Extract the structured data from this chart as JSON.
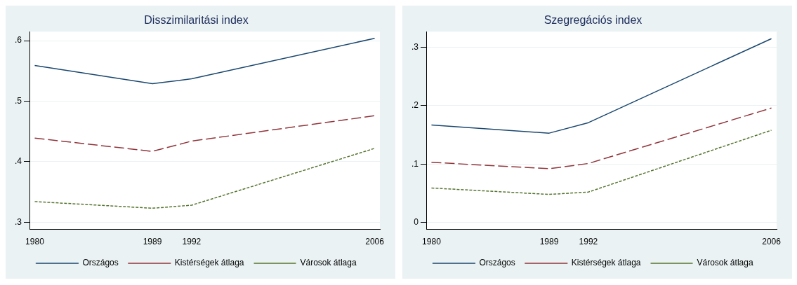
{
  "chart_data": [
    {
      "type": "line",
      "title": "Disszimilaritási index",
      "x": [
        1980,
        1989,
        1992,
        2006
      ],
      "xlim": [
        1979.6,
        2006.4
      ],
      "xticks": [
        1980,
        1989,
        1992,
        2006
      ],
      "ylim": [
        0.288,
        0.615
      ],
      "yticks": [
        {
          "value": 0.3,
          "label": ".3"
        },
        {
          "value": 0.4,
          "label": ".4"
        },
        {
          "value": 0.5,
          "label": ".5"
        },
        {
          "value": 0.6,
          "label": ".6"
        }
      ],
      "grid": "y",
      "legend": "bottom",
      "marker": "none",
      "series": [
        {
          "name": "Országos",
          "color": "#1a476f",
          "line_style": "solid",
          "values": [
            0.559,
            0.529,
            0.537,
            0.604
          ]
        },
        {
          "name": "Kistérségek átlaga",
          "color": "#90353b",
          "line_style": "dashed",
          "values": [
            0.439,
            0.417,
            0.434,
            0.476
          ]
        },
        {
          "name": "Városok átlaga",
          "color": "#55752f",
          "line_style": "dotted",
          "values": [
            0.334,
            0.323,
            0.328,
            0.422
          ]
        }
      ]
    },
    {
      "type": "line",
      "title": "Szegregációs index",
      "x": [
        1980,
        1989,
        1992,
        2006
      ],
      "xlim": [
        1979.6,
        2006.4
      ],
      "xticks": [
        1980,
        1989,
        1992,
        2006
      ],
      "ylim": [
        -0.012,
        0.327
      ],
      "yticks": [
        0,
        {
          "value": 0.1,
          "label": ".1"
        },
        {
          "value": 0.2,
          "label": ".2"
        },
        {
          "value": 0.3,
          "label": ".3"
        }
      ],
      "grid": "y",
      "legend": "bottom",
      "marker": "none",
      "series": [
        {
          "name": "Országos",
          "color": "#1a476f",
          "line_style": "solid",
          "values": [
            0.167,
            0.153,
            0.171,
            0.315
          ]
        },
        {
          "name": "Kistérségek átlaga",
          "color": "#90353b",
          "line_style": "dashed",
          "values": [
            0.103,
            0.092,
            0.101,
            0.196
          ]
        },
        {
          "name": "Városok átlaga",
          "color": "#55752f",
          "line_style": "dotted",
          "values": [
            0.059,
            0.048,
            0.052,
            0.158
          ]
        }
      ]
    }
  ]
}
